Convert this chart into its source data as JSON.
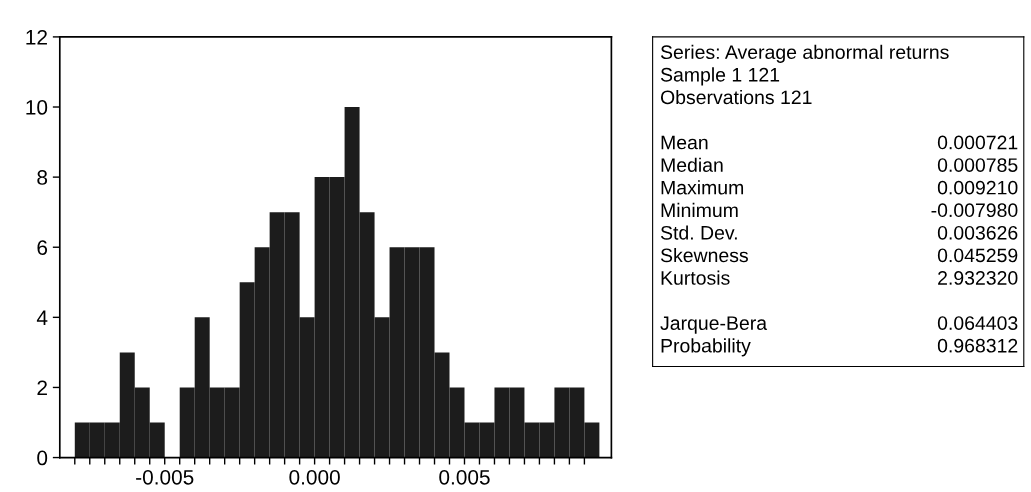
{
  "chart_data": [
    {
      "type": "histogram",
      "bins": [
        -0.008,
        -0.0075,
        -0.007,
        -0.0065,
        -0.006,
        -0.0055,
        -0.005,
        -0.0045,
        -0.004,
        -0.0035,
        -0.003,
        -0.0025,
        -0.002,
        -0.0015,
        -0.001,
        -0.0005,
        0.0,
        0.0005,
        0.001,
        0.0015,
        0.002,
        0.0025,
        0.003,
        0.0035,
        0.004,
        0.0045,
        0.005,
        0.0055,
        0.006,
        0.0065,
        0.007,
        0.0075,
        0.008,
        0.0085,
        0.009,
        0.0095
      ],
      "values": [
        1,
        1,
        1,
        3,
        2,
        1,
        0,
        2,
        4,
        2,
        2,
        5,
        6,
        7,
        7,
        4,
        8,
        8,
        10,
        7,
        4,
        6,
        6,
        6,
        3,
        2,
        1,
        1,
        2,
        2,
        1,
        1,
        2,
        2,
        1
      ],
      "color": "#1c1c1c",
      "xlim": [
        -0.0085,
        0.0099
      ],
      "ylim": [
        0,
        12
      ],
      "yticks": [
        0,
        2,
        4,
        6,
        8,
        10,
        12
      ],
      "xticks": [
        {
          "value": -0.008,
          "label": null
        },
        {
          "value": -0.0075,
          "label": null
        },
        {
          "value": -0.007,
          "label": null
        },
        {
          "value": -0.0065,
          "label": null
        },
        {
          "value": -0.006,
          "label": null
        },
        {
          "value": -0.0055,
          "label": null
        },
        {
          "value": -0.005,
          "label": "-0.005"
        },
        {
          "value": -0.0045,
          "label": null
        },
        {
          "value": -0.004,
          "label": null
        },
        {
          "value": -0.0035,
          "label": null
        },
        {
          "value": -0.003,
          "label": null
        },
        {
          "value": -0.0025,
          "label": null
        },
        {
          "value": -0.002,
          "label": null
        },
        {
          "value": -0.0015,
          "label": null
        },
        {
          "value": -0.001,
          "label": null
        },
        {
          "value": -0.0005,
          "label": null
        },
        {
          "value": 0.0,
          "label": "0.000"
        },
        {
          "value": 0.0005,
          "label": null
        },
        {
          "value": 0.001,
          "label": null
        },
        {
          "value": 0.0015,
          "label": null
        },
        {
          "value": 0.002,
          "label": null
        },
        {
          "value": 0.0025,
          "label": null
        },
        {
          "value": 0.003,
          "label": null
        },
        {
          "value": 0.0035,
          "label": null
        },
        {
          "value": 0.004,
          "label": null
        },
        {
          "value": 0.0045,
          "label": null
        },
        {
          "value": 0.005,
          "label": "0.005"
        },
        {
          "value": 0.0055,
          "label": null
        },
        {
          "value": 0.006,
          "label": null
        },
        {
          "value": 0.0065,
          "label": null
        },
        {
          "value": 0.007,
          "label": null
        },
        {
          "value": 0.0075,
          "label": null
        },
        {
          "value": 0.008,
          "label": null
        },
        {
          "value": 0.0085,
          "label": null
        },
        {
          "value": 0.009,
          "label": null
        }
      ],
      "grid": false,
      "legend": false
    },
    {
      "type": "other",
      "annotations": [
        "Series: Average abnormal returns",
        "Sample 1 121",
        "Observations 121",
        "Mean\t0.000721",
        "Median\t0.000785",
        "Maximum\t0.009210",
        "Minimum\t-0.007980",
        "Std. Dev.\t0.003626",
        "Skewness\t0.045259",
        "Kurtosis\t2.932320",
        "Jarque-Bera\t0.064403",
        "Probability\t0.968312"
      ]
    }
  ]
}
